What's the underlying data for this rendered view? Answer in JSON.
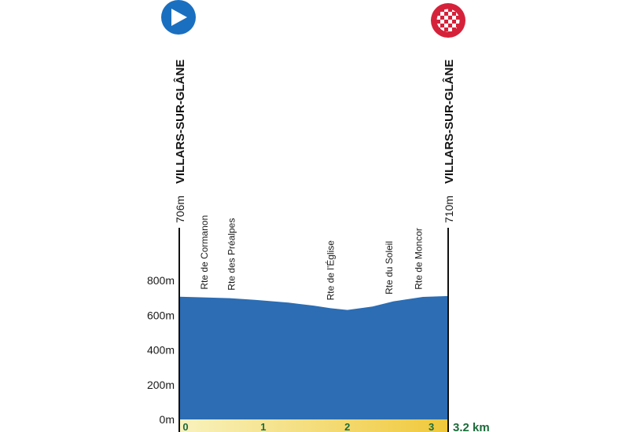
{
  "chart_data": {
    "type": "area",
    "title": "",
    "xlabel": "",
    "ylabel": "",
    "xlim": [
      0,
      3.2
    ],
    "ylim": [
      0,
      800
    ],
    "y_ticks": [
      "0m",
      "200m",
      "400m",
      "600m",
      "800m"
    ],
    "y_tick_values": [
      0,
      200,
      400,
      600,
      800
    ],
    "x_ticks": [
      "0",
      "1",
      "2",
      "3"
    ],
    "x_tick_values": [
      0,
      1,
      2,
      3
    ],
    "total_distance_label": "3.2 km",
    "profile": {
      "x": [
        0,
        0.25,
        0.6,
        0.9,
        1.3,
        1.6,
        1.8,
        2.0,
        2.3,
        2.55,
        2.9,
        3.2
      ],
      "y": [
        706,
        703,
        698,
        688,
        672,
        655,
        640,
        630,
        650,
        680,
        705,
        710
      ]
    },
    "start": {
      "town": "VILLARS-SUR-GLÂNE",
      "elevation": "706m"
    },
    "finish": {
      "town": "VILLARS-SUR-GLÂNE",
      "elevation": "710m"
    },
    "streets": [
      {
        "name": "Rte de Cormanon",
        "km": 0.3
      },
      {
        "name": "Rte des Préalpes",
        "km": 0.62
      },
      {
        "name": "Rte de l'Église",
        "km": 1.8
      },
      {
        "name": "Rte du Soleil",
        "km": 2.5
      },
      {
        "name": "Rte de Moncor",
        "km": 2.85
      }
    ],
    "grid": false,
    "colors": {
      "fill": "#2c6db4",
      "baseline_start": "#f8f2be",
      "baseline_end": "#f0c83a",
      "axis_text_green": "#1c6b3a",
      "start_icon": "#1a6fc0",
      "finish_icon": "#d5223a"
    },
    "icons": {
      "start": "play-start-icon",
      "finish": "checkered-flag-finish-icon"
    }
  }
}
